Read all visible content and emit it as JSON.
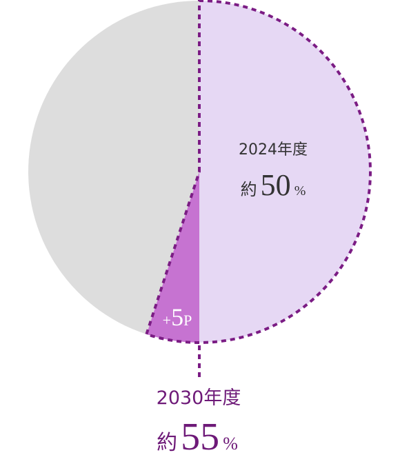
{
  "chart_data": {
    "type": "pie",
    "title": "",
    "slices": [
      {
        "label": "2024年度",
        "value": 50,
        "color": "#E6D8F4"
      },
      {
        "label": "+5P",
        "value": 5,
        "color": "#C673D1"
      },
      {
        "label": "",
        "value": 45,
        "color": "#DDDDDD"
      }
    ],
    "outline_color": "#7B1C84",
    "outline_style": "dashed",
    "labels": {
      "label_2024": {
        "year": "2024年度",
        "prefix": "約",
        "value": "50",
        "unit": "%"
      },
      "label_increase": {
        "text": "+5P"
      },
      "label_2030": {
        "year": "2030年度",
        "prefix": "約",
        "value": "55",
        "unit": "%"
      }
    },
    "colors": {
      "text_dark": "#333333",
      "text_purple": "#6E1A78",
      "text_light": "#ffffff"
    }
  }
}
